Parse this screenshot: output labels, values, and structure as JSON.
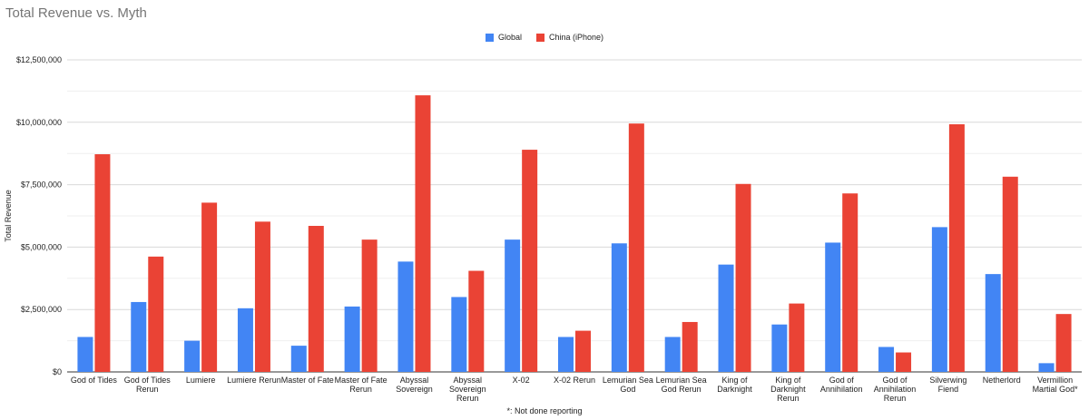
{
  "chart_data": {
    "type": "bar",
    "title": "Total Revenue vs. Myth",
    "ylabel": "Total Revenue",
    "xlabel": "",
    "ylim": [
      0,
      12500000
    ],
    "yticks": [
      0,
      2500000,
      5000000,
      7500000,
      10000000,
      12500000
    ],
    "ytick_labels": [
      "$0",
      "$2,500,000",
      "$5,000,000",
      "$7,500,000",
      "$10,000,000",
      "$12,500,000"
    ],
    "grid": true,
    "legend_position": "top",
    "footnote": "*: Not done reporting",
    "categories": [
      "God of Tides",
      "God of Tides Rerun",
      "Lumiere",
      "Lumiere Rerun",
      "Master of Fate",
      "Master of Fate Rerun",
      "Abyssal Sovereign",
      "Abyssal Sovereign Rerun",
      "X-02",
      "X-02 Rerun",
      "Lemurian Sea God",
      "Lemurian Sea God Rerun",
      "King of Darknight",
      "King of Darknight Rerun",
      "God of Annihilation",
      "God of Annihilation Rerun",
      "Silverwing Fiend",
      "Netherlord",
      "Vermillion Martial God*"
    ],
    "category_lines": [
      [
        "God of Tides"
      ],
      [
        "God of Tides",
        "Rerun"
      ],
      [
        "Lumiere"
      ],
      [
        "Lumiere Rerun"
      ],
      [
        "Master of Fate"
      ],
      [
        "Master of Fate",
        "Rerun"
      ],
      [
        "Abyssal",
        "Sovereign"
      ],
      [
        "Abyssal",
        "Sovereign",
        "Rerun"
      ],
      [
        "X-02"
      ],
      [
        "X-02 Rerun"
      ],
      [
        "Lemurian Sea",
        "God"
      ],
      [
        "Lemurian Sea",
        "God Rerun"
      ],
      [
        "King of",
        "Darknight"
      ],
      [
        "King of",
        "Darknight",
        "Rerun"
      ],
      [
        "God of",
        "Annihilation"
      ],
      [
        "God of",
        "Annihilation",
        "Rerun"
      ],
      [
        "Silverwing",
        "Fiend"
      ],
      [
        "Netherlord"
      ],
      [
        "Vermillion",
        "Martial God*"
      ]
    ],
    "series": [
      {
        "name": "Global",
        "color": "#4285f4",
        "values": [
          1400000,
          2800000,
          1250000,
          2550000,
          1050000,
          2620000,
          4420000,
          3000000,
          5300000,
          1400000,
          5150000,
          1400000,
          4300000,
          1900000,
          5180000,
          1000000,
          5800000,
          3920000,
          350000
        ]
      },
      {
        "name": "China (iPhone)",
        "color": "#ea4335",
        "values": [
          8720000,
          4620000,
          6780000,
          6020000,
          5850000,
          5300000,
          11080000,
          4050000,
          8900000,
          1650000,
          9950000,
          2000000,
          7530000,
          2740000,
          7150000,
          780000,
          9920000,
          7820000,
          2320000
        ]
      }
    ]
  }
}
